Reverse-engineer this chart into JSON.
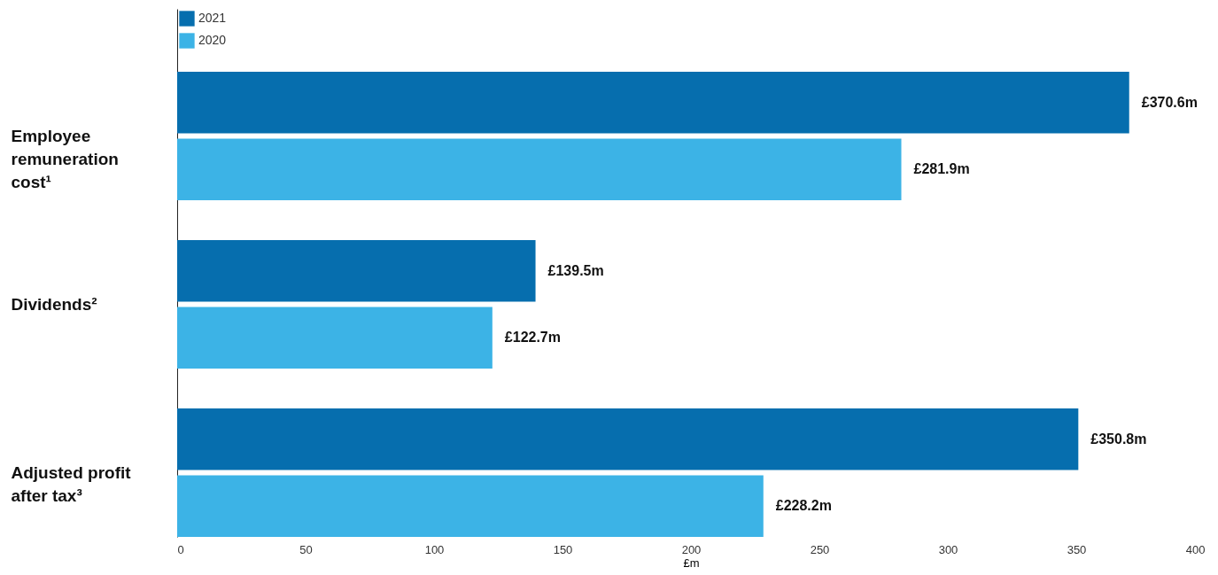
{
  "chart_data": {
    "type": "bar",
    "orientation": "horizontal",
    "xlabel": "£m",
    "legend": "top left",
    "categories": [
      "Employee remuneration cost¹",
      "Dividends²",
      "Adjusted profit after tax³"
    ],
    "series": [
      {
        "name": "2021",
        "color": "#066eae",
        "values": [
          370.6,
          139.5,
          350.8
        ],
        "value_labels": [
          "£370.6m",
          "£139.5m",
          "£350.8m"
        ]
      },
      {
        "name": "2020",
        "color": "#3cb3e6",
        "values": [
          281.9,
          122.7,
          228.2
        ],
        "value_labels": [
          "£281.9m",
          "£122.7m",
          "£228.2m"
        ]
      }
    ],
    "xlim": [
      0,
      400
    ],
    "xticks": [
      0,
      50,
      100,
      150,
      200,
      250,
      300,
      350,
      400
    ]
  }
}
